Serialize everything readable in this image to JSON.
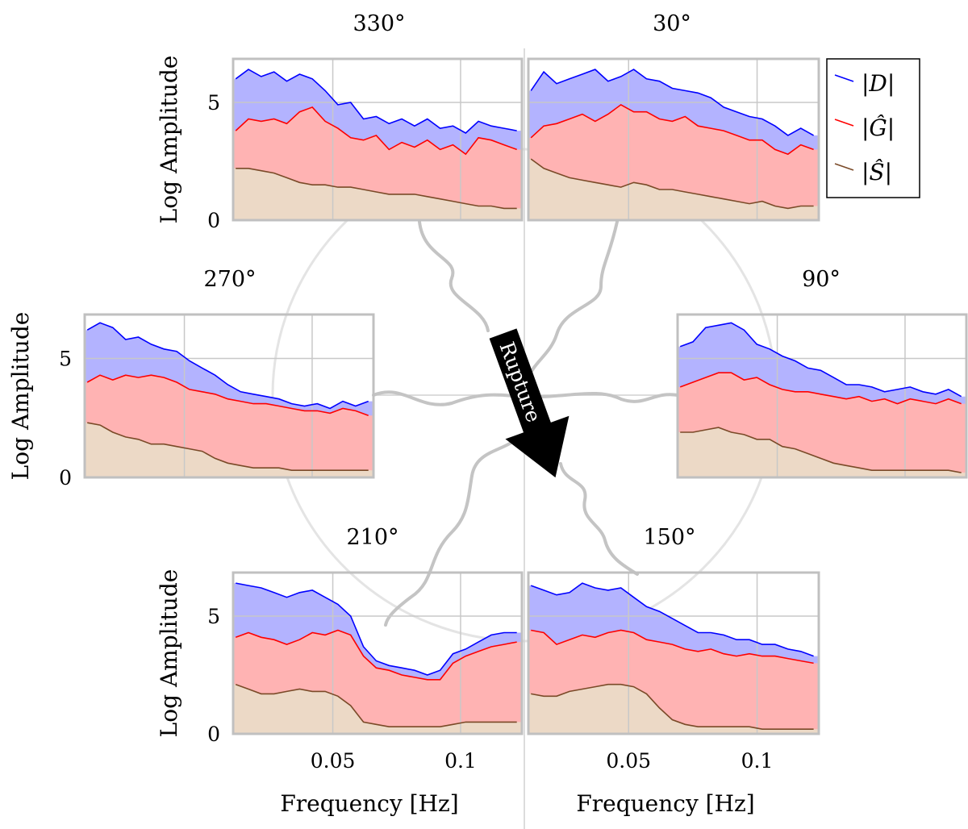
{
  "arrow_label": "Rupture",
  "legend": {
    "entries": [
      {
        "label": "|D|",
        "color": "#0000ff"
      },
      {
        "label": "|Ĝ|",
        "color": "#ff0000"
      },
      {
        "label": "|Ŝ|",
        "color": "#7a4a28"
      }
    ]
  },
  "colors": {
    "D_line": "#0000ff",
    "D_fill": "#b3b3ff",
    "G_line": "#ff0000",
    "G_fill": "#ffb3b3",
    "S_line": "#7a4a28",
    "S_fill": "#ecd9c6",
    "grid": "#c8c8c8",
    "frame": "#c0c0c0"
  },
  "chart_data": [
    {
      "type": "area",
      "title": "330°",
      "ylabel": "Log Amplitude",
      "xlabel": "",
      "xlim": [
        0.011,
        0.124
      ],
      "ylim": [
        0,
        6.85
      ],
      "yticks": [
        "0",
        "5"
      ],
      "yticks_values": [
        0,
        5
      ],
      "xticks": [],
      "xticks_values": [
        0.05,
        0.1
      ],
      "grid": true,
      "x": [
        0.012,
        0.017,
        0.022,
        0.027,
        0.032,
        0.037,
        0.042,
        0.047,
        0.052,
        0.057,
        0.062,
        0.067,
        0.072,
        0.077,
        0.082,
        0.087,
        0.092,
        0.097,
        0.102,
        0.107,
        0.112,
        0.117,
        0.122
      ],
      "series": [
        {
          "name": "|D|",
          "values": [
            6.0,
            6.4,
            6.1,
            6.3,
            5.9,
            6.2,
            6.0,
            5.5,
            4.9,
            5.0,
            4.3,
            4.4,
            4.1,
            4.3,
            4.0,
            4.3,
            3.9,
            4.0,
            3.7,
            4.2,
            4.0,
            3.9,
            3.8
          ]
        },
        {
          "name": "|Ĝ|",
          "values": [
            3.8,
            4.3,
            4.2,
            4.3,
            4.1,
            4.6,
            4.8,
            4.2,
            3.9,
            3.5,
            3.4,
            3.6,
            3.0,
            3.3,
            3.1,
            3.4,
            3.0,
            3.2,
            2.8,
            3.5,
            3.4,
            3.2,
            3.0
          ]
        },
        {
          "name": "|Ŝ|",
          "values": [
            2.2,
            2.2,
            2.1,
            2.0,
            1.8,
            1.6,
            1.5,
            1.5,
            1.4,
            1.4,
            1.3,
            1.2,
            1.1,
            1.1,
            1.1,
            1.0,
            0.9,
            0.8,
            0.7,
            0.6,
            0.6,
            0.5,
            0.5
          ]
        }
      ]
    },
    {
      "type": "area",
      "title": "30°",
      "ylabel": "",
      "xlabel": "",
      "xlim": [
        0.011,
        0.124
      ],
      "ylim": [
        0,
        6.85
      ],
      "yticks": [],
      "yticks_values": [
        5
      ],
      "xticks": [],
      "xticks_values": [
        0.05,
        0.1
      ],
      "grid": true,
      "x": [
        0.012,
        0.017,
        0.022,
        0.027,
        0.032,
        0.037,
        0.042,
        0.047,
        0.052,
        0.057,
        0.062,
        0.067,
        0.072,
        0.077,
        0.082,
        0.087,
        0.092,
        0.097,
        0.102,
        0.107,
        0.112,
        0.117,
        0.122
      ],
      "series": [
        {
          "name": "|D|",
          "values": [
            5.5,
            6.3,
            5.8,
            6.0,
            6.2,
            6.4,
            5.9,
            6.1,
            6.4,
            6.0,
            5.9,
            5.6,
            5.5,
            5.4,
            5.2,
            4.8,
            4.6,
            4.4,
            4.3,
            4.0,
            3.6,
            3.9,
            3.6
          ]
        },
        {
          "name": "|Ĝ|",
          "values": [
            3.5,
            4.0,
            4.1,
            4.3,
            4.5,
            4.2,
            4.5,
            4.9,
            4.6,
            4.6,
            4.3,
            4.2,
            4.4,
            4.0,
            3.9,
            3.8,
            3.6,
            3.4,
            3.4,
            3.0,
            2.8,
            3.2,
            3.0
          ]
        },
        {
          "name": "|Ŝ|",
          "values": [
            2.6,
            2.2,
            2.0,
            1.8,
            1.7,
            1.6,
            1.5,
            1.4,
            1.6,
            1.5,
            1.3,
            1.3,
            1.2,
            1.1,
            1.0,
            0.9,
            0.8,
            0.7,
            0.8,
            0.6,
            0.5,
            0.6,
            0.6
          ]
        }
      ]
    },
    {
      "type": "area",
      "title": "270°",
      "ylabel": "Log Amplitude",
      "xlabel": "",
      "xlim": [
        0.011,
        0.124
      ],
      "ylim": [
        0,
        6.85
      ],
      "yticks": [
        "0",
        "5"
      ],
      "yticks_values": [
        0,
        5
      ],
      "xticks": [],
      "xticks_values": [
        0.05,
        0.1
      ],
      "grid": true,
      "x": [
        0.012,
        0.017,
        0.022,
        0.027,
        0.032,
        0.037,
        0.042,
        0.047,
        0.052,
        0.057,
        0.062,
        0.067,
        0.072,
        0.077,
        0.082,
        0.087,
        0.092,
        0.097,
        0.102,
        0.107,
        0.112,
        0.117,
        0.122
      ],
      "series": [
        {
          "name": "|D|",
          "values": [
            6.2,
            6.5,
            6.3,
            5.8,
            5.9,
            5.6,
            5.4,
            5.3,
            4.9,
            4.6,
            4.3,
            3.9,
            3.6,
            3.5,
            3.4,
            3.3,
            3.1,
            3.0,
            3.1,
            2.9,
            3.2,
            3.0,
            3.2
          ]
        },
        {
          "name": "|Ĝ|",
          "values": [
            4.0,
            4.3,
            4.1,
            4.3,
            4.2,
            4.3,
            4.2,
            4.0,
            3.7,
            3.6,
            3.5,
            3.3,
            3.2,
            3.1,
            3.1,
            3.0,
            2.9,
            2.8,
            2.8,
            2.7,
            2.9,
            2.8,
            2.6
          ]
        },
        {
          "name": "|Ŝ|",
          "values": [
            2.3,
            2.2,
            1.9,
            1.7,
            1.6,
            1.4,
            1.4,
            1.3,
            1.2,
            1.1,
            0.8,
            0.6,
            0.5,
            0.4,
            0.4,
            0.4,
            0.3,
            0.3,
            0.3,
            0.3,
            0.3,
            0.3,
            0.3
          ]
        }
      ]
    },
    {
      "type": "area",
      "title": "90°",
      "ylabel": "",
      "xlabel": "",
      "xlim": [
        0.011,
        0.124
      ],
      "ylim": [
        0,
        6.85
      ],
      "yticks": [],
      "yticks_values": [
        5
      ],
      "xticks": [],
      "xticks_values": [
        0.05,
        0.1
      ],
      "grid": true,
      "x": [
        0.012,
        0.017,
        0.022,
        0.027,
        0.032,
        0.037,
        0.042,
        0.047,
        0.052,
        0.057,
        0.062,
        0.067,
        0.072,
        0.077,
        0.082,
        0.087,
        0.092,
        0.097,
        0.102,
        0.107,
        0.112,
        0.117,
        0.122
      ],
      "series": [
        {
          "name": "|D|",
          "values": [
            5.5,
            5.7,
            6.3,
            6.4,
            6.5,
            6.2,
            5.6,
            5.4,
            5.1,
            4.9,
            4.6,
            4.5,
            4.2,
            3.9,
            3.9,
            3.8,
            3.6,
            3.7,
            3.8,
            3.6,
            3.5,
            3.7,
            3.4
          ]
        },
        {
          "name": "|Ĝ|",
          "values": [
            3.8,
            4.0,
            4.2,
            4.4,
            4.4,
            4.1,
            4.2,
            3.9,
            3.7,
            3.6,
            3.6,
            3.5,
            3.4,
            3.3,
            3.4,
            3.2,
            3.3,
            3.1,
            3.3,
            3.2,
            3.1,
            3.3,
            3.1
          ]
        },
        {
          "name": "|Ŝ|",
          "values": [
            1.9,
            1.9,
            2.0,
            2.1,
            1.9,
            1.8,
            1.6,
            1.6,
            1.3,
            1.2,
            1.0,
            0.8,
            0.6,
            0.5,
            0.4,
            0.3,
            0.3,
            0.3,
            0.3,
            0.3,
            0.3,
            0.3,
            0.2
          ]
        }
      ]
    },
    {
      "type": "area",
      "title": "210°",
      "ylabel": "Log Amplitude",
      "xlabel": "Frequency [Hz]",
      "xlim": [
        0.011,
        0.124
      ],
      "ylim": [
        0,
        6.85
      ],
      "yticks": [
        "0",
        "5"
      ],
      "yticks_values": [
        0,
        5
      ],
      "xticks": [
        "0.05",
        "0.1"
      ],
      "xticks_values": [
        0.05,
        0.1
      ],
      "grid": true,
      "x": [
        0.012,
        0.017,
        0.022,
        0.027,
        0.032,
        0.037,
        0.042,
        0.047,
        0.052,
        0.057,
        0.062,
        0.067,
        0.072,
        0.077,
        0.082,
        0.087,
        0.092,
        0.097,
        0.102,
        0.107,
        0.112,
        0.117,
        0.122
      ],
      "series": [
        {
          "name": "|D|",
          "values": [
            6.4,
            6.3,
            6.2,
            6.0,
            5.8,
            6.0,
            6.1,
            5.8,
            5.5,
            5.0,
            3.7,
            3.1,
            2.9,
            2.8,
            2.7,
            2.5,
            2.7,
            3.4,
            3.6,
            3.9,
            4.2,
            4.3,
            4.3
          ]
        },
        {
          "name": "|Ĝ|",
          "values": [
            4.1,
            4.3,
            4.1,
            4.0,
            3.8,
            4.0,
            4.3,
            4.2,
            4.4,
            4.2,
            3.3,
            2.8,
            2.7,
            2.5,
            2.4,
            2.3,
            2.3,
            3.0,
            3.3,
            3.5,
            3.7,
            3.8,
            3.9
          ]
        },
        {
          "name": "|Ŝ|",
          "values": [
            2.1,
            1.9,
            1.7,
            1.7,
            1.8,
            1.9,
            1.8,
            1.8,
            1.6,
            1.2,
            0.5,
            0.4,
            0.3,
            0.3,
            0.3,
            0.3,
            0.3,
            0.4,
            0.5,
            0.5,
            0.5,
            0.5,
            0.5
          ]
        }
      ]
    },
    {
      "type": "area",
      "title": "150°",
      "ylabel": "",
      "xlabel": "Frequency [Hz]",
      "xlim": [
        0.011,
        0.124
      ],
      "ylim": [
        0,
        6.85
      ],
      "yticks": [],
      "yticks_values": [
        5
      ],
      "xticks": [
        "0.05",
        "0.1"
      ],
      "xticks_values": [
        0.05,
        0.1
      ],
      "grid": true,
      "x": [
        0.012,
        0.017,
        0.022,
        0.027,
        0.032,
        0.037,
        0.042,
        0.047,
        0.052,
        0.057,
        0.062,
        0.067,
        0.072,
        0.077,
        0.082,
        0.087,
        0.092,
        0.097,
        0.102,
        0.107,
        0.112,
        0.117,
        0.122
      ],
      "series": [
        {
          "name": "|D|",
          "values": [
            6.3,
            6.1,
            5.9,
            6.0,
            6.4,
            6.2,
            6.1,
            6.2,
            5.8,
            5.4,
            5.2,
            4.9,
            4.6,
            4.3,
            4.3,
            4.2,
            4.0,
            4.0,
            3.8,
            3.8,
            3.6,
            3.5,
            3.3
          ]
        },
        {
          "name": "|Ĝ|",
          "values": [
            4.4,
            4.3,
            3.8,
            4.0,
            4.2,
            4.1,
            4.3,
            4.4,
            4.3,
            4.0,
            3.9,
            3.8,
            3.6,
            3.5,
            3.6,
            3.4,
            3.3,
            3.4,
            3.3,
            3.3,
            3.2,
            3.1,
            3.0
          ]
        },
        {
          "name": "|Ŝ|",
          "values": [
            1.7,
            1.6,
            1.6,
            1.8,
            1.9,
            2.0,
            2.1,
            2.1,
            2.0,
            1.7,
            1.1,
            0.6,
            0.4,
            0.3,
            0.3,
            0.3,
            0.3,
            0.3,
            0.2,
            0.2,
            0.2,
            0.2,
            0.2
          ]
        }
      ]
    }
  ]
}
